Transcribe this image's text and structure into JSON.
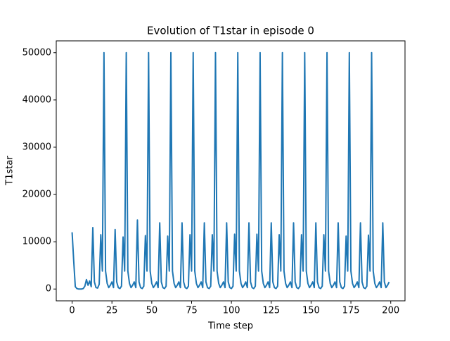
{
  "chart_data": {
    "type": "line",
    "title": "Evolution of T1star in episode 0",
    "x_label": "Time step",
    "y_label": "T1star",
    "x": [
      0,
      1,
      2,
      3,
      4,
      5,
      6,
      7,
      8,
      9,
      10,
      11,
      12,
      13,
      14,
      15,
      16,
      17,
      18,
      19,
      20,
      21,
      22,
      23,
      24,
      25,
      26,
      27,
      28,
      29,
      30,
      31,
      32,
      33,
      34,
      35,
      36,
      37,
      38,
      39,
      40,
      41,
      42,
      43,
      44,
      45,
      46,
      47,
      48,
      49,
      50,
      51,
      52,
      53,
      54,
      55,
      56,
      57,
      58,
      59,
      60,
      61,
      62,
      63,
      64,
      65,
      66,
      67,
      68,
      69,
      70,
      71,
      72,
      73,
      74,
      75,
      76,
      77,
      78,
      79,
      80,
      81,
      82,
      83,
      84,
      85,
      86,
      87,
      88,
      89,
      90,
      91,
      92,
      93,
      94,
      95,
      96,
      97,
      98,
      99,
      100,
      101,
      102,
      103,
      104,
      105,
      106,
      107,
      108,
      109,
      110,
      111,
      112,
      113,
      114,
      115,
      116,
      117,
      118,
      119,
      120,
      121,
      122,
      123,
      124,
      125,
      126,
      127,
      128,
      129,
      130,
      131,
      132,
      133,
      134,
      135,
      136,
      137,
      138,
      139,
      140,
      141,
      142,
      143,
      144,
      145,
      146,
      147,
      148,
      149,
      150,
      151,
      152,
      153,
      154,
      155,
      156,
      157,
      158,
      159,
      160,
      161,
      162,
      163,
      164,
      165,
      166,
      167,
      168,
      169,
      170,
      171,
      172,
      173,
      174,
      175,
      176,
      177,
      178,
      179,
      180,
      181,
      182,
      183,
      184,
      185,
      186,
      187,
      188,
      189,
      190,
      191,
      192,
      193,
      194,
      195,
      196,
      197,
      198,
      199
    ],
    "series": [
      {
        "name": "T1star",
        "color": "#1f77b4",
        "values": [
          12000,
          6000,
          500,
          100,
          0,
          0,
          0,
          100,
          600,
          2000,
          800,
          1700,
          500,
          13000,
          1500,
          300,
          200,
          1000,
          11500,
          3800,
          50000,
          3800,
          1200,
          300,
          800,
          1500,
          300,
          12600,
          1500,
          300,
          100,
          600,
          11000,
          3800,
          50000,
          3800,
          1200,
          300,
          800,
          1500,
          300,
          14600,
          1500,
          300,
          100,
          600,
          11300,
          3800,
          50000,
          3800,
          1200,
          300,
          800,
          1500,
          300,
          14000,
          1500,
          300,
          100,
          600,
          11200,
          3800,
          50000,
          3800,
          1200,
          300,
          800,
          1500,
          300,
          14000,
          1500,
          300,
          100,
          600,
          11500,
          3800,
          50000,
          3800,
          1200,
          300,
          800,
          1500,
          300,
          14000,
          1500,
          300,
          100,
          600,
          11500,
          3800,
          50000,
          3800,
          1200,
          300,
          800,
          1500,
          300,
          14000,
          1500,
          300,
          100,
          600,
          11600,
          3800,
          50000,
          3800,
          1200,
          300,
          800,
          1500,
          300,
          14000,
          1500,
          300,
          100,
          600,
          11600,
          3800,
          50000,
          3800,
          1200,
          300,
          800,
          1500,
          300,
          14000,
          1500,
          300,
          100,
          600,
          11500,
          3800,
          50000,
          3800,
          1200,
          300,
          800,
          1500,
          300,
          14000,
          1500,
          300,
          100,
          600,
          11500,
          3800,
          50000,
          3800,
          1200,
          300,
          800,
          1500,
          300,
          14000,
          1500,
          300,
          100,
          600,
          11500,
          3800,
          50000,
          3800,
          1200,
          300,
          800,
          1500,
          300,
          14000,
          1500,
          300,
          100,
          600,
          11200,
          3800,
          50000,
          3800,
          1200,
          300,
          800,
          1500,
          300,
          14000,
          1500,
          300,
          100,
          600,
          11400,
          3800,
          50000,
          3800,
          1200,
          300,
          800,
          1500,
          300,
          14000,
          1500,
          300,
          800,
          1500
        ]
      }
    ],
    "xlim": [
      -9.95,
      208.95
    ],
    "xticks": [
      0,
      25,
      50,
      75,
      100,
      125,
      150,
      175,
      200
    ],
    "ylim": [
      -2500,
      52500
    ],
    "yticks": [
      0,
      10000,
      20000,
      30000,
      40000,
      50000
    ]
  }
}
